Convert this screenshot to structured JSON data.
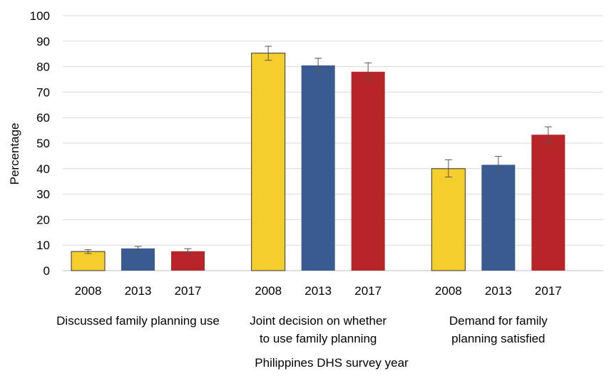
{
  "chart_data": {
    "type": "bar",
    "title": "",
    "xlabel": "Philippines DHS survey year",
    "ylabel": "Percentage",
    "ylim": [
      0,
      100
    ],
    "yticks": [
      0,
      10,
      20,
      30,
      40,
      50,
      60,
      70,
      80,
      90,
      100
    ],
    "grid": true,
    "legend": "none",
    "groups": [
      {
        "label_lines": [
          "Discussed family planning use"
        ],
        "bars": [
          {
            "year": "2008",
            "value": 7.5,
            "err_low": 6.7,
            "err_high": 8.2,
            "color": "#F5CE2D"
          },
          {
            "year": "2013",
            "value": 8.7,
            "err_low": 7.9,
            "err_high": 9.5,
            "color": "#3A5A92"
          },
          {
            "year": "2017",
            "value": 7.6,
            "err_low": 6.7,
            "err_high": 8.6,
            "color": "#B82528"
          }
        ]
      },
      {
        "label_lines": [
          "Joint decision on whether",
          "to use family planning"
        ],
        "bars": [
          {
            "year": "2008",
            "value": 85.3,
            "err_low": 82.5,
            "err_high": 88.0,
            "color": "#F5CE2D"
          },
          {
            "year": "2013",
            "value": 80.5,
            "err_low": 77.8,
            "err_high": 83.3,
            "color": "#3A5A92"
          },
          {
            "year": "2017",
            "value": 78.0,
            "err_low": 74.8,
            "err_high": 81.5,
            "color": "#B82528"
          }
        ]
      },
      {
        "label_lines": [
          "Demand for family",
          "planning satisfied"
        ],
        "bars": [
          {
            "year": "2008",
            "value": 40.0,
            "err_low": 36.7,
            "err_high": 43.5,
            "color": "#F5CE2D"
          },
          {
            "year": "2013",
            "value": 41.5,
            "err_low": 38.5,
            "err_high": 44.8,
            "color": "#3A5A92"
          },
          {
            "year": "2017",
            "value": 53.3,
            "err_low": 50.0,
            "err_high": 56.4,
            "color": "#B82528"
          }
        ]
      }
    ]
  }
}
